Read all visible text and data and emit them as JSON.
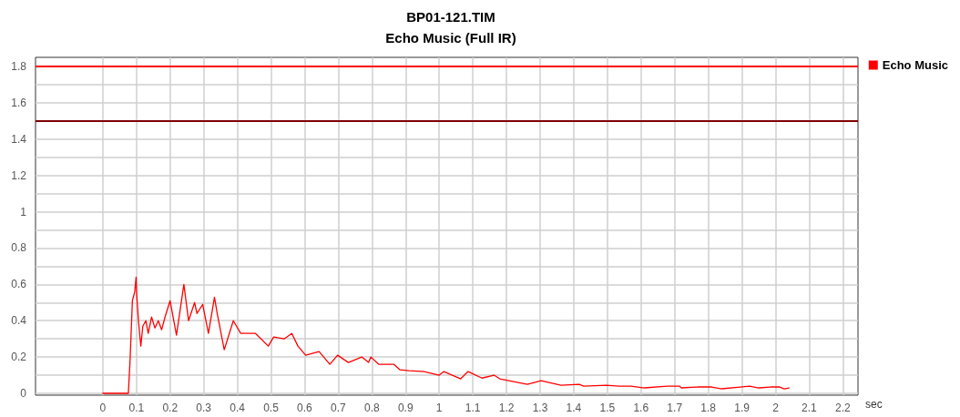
{
  "chart_data": {
    "type": "line",
    "title": "BP01-121.TIM",
    "subtitle": "Echo Music (Full IR)",
    "xlabel": "sec",
    "xlim": [
      -0.2,
      2.245
    ],
    "ylim": [
      -0.01,
      1.85
    ],
    "xticks": [
      0,
      0.1,
      0.2,
      0.3,
      0.4,
      0.5,
      0.6,
      0.7,
      0.8,
      0.9,
      1,
      1.1,
      1.2,
      1.3,
      1.4,
      1.5,
      1.6,
      1.7,
      1.8,
      1.9,
      2,
      2.1,
      2.2
    ],
    "yticks": [
      0,
      {
        "value": 0.1,
        "label": null
      },
      0.2,
      {
        "value": 0.3,
        "label": null
      },
      0.4,
      {
        "value": 0.5,
        "label": null
      },
      0.6,
      {
        "value": 0.7,
        "label": null
      },
      0.8,
      {
        "value": 0.9,
        "label": null
      },
      1,
      {
        "value": 1.1,
        "label": null
      },
      1.2,
      {
        "value": 1.3,
        "label": null
      },
      1.4,
      {
        "value": 1.5,
        "label": null
      },
      1.6,
      {
        "value": 1.7,
        "label": null
      },
      1.8
    ],
    "grid": true,
    "legend": "top right",
    "marker": "none",
    "line_style": "solid",
    "ref_lines": [
      {
        "axis": "y",
        "value": 1.8,
        "color": "#ff0000"
      },
      {
        "axis": "y",
        "value": 1.5,
        "color": "#800000"
      }
    ],
    "series": [
      {
        "name": "Echo Music",
        "color": "#ff0000",
        "x": [
          0,
          0.076,
          0.081,
          0.088,
          0.095,
          0.099,
          0.101,
          0.106,
          0.113,
          0.119,
          0.128,
          0.135,
          0.145,
          0.155,
          0.165,
          0.175,
          0.185,
          0.2,
          0.219,
          0.241,
          0.255,
          0.273,
          0.28,
          0.297,
          0.314,
          0.332,
          0.34,
          0.361,
          0.388,
          0.41,
          0.454,
          0.492,
          0.508,
          0.539,
          0.562,
          0.58,
          0.603,
          0.643,
          0.675,
          0.698,
          0.73,
          0.77,
          0.79,
          0.797,
          0.82,
          0.865,
          0.883,
          0.91,
          0.955,
          1.0,
          1.014,
          1.064,
          1.086,
          1.127,
          1.163,
          1.18,
          1.262,
          1.303,
          1.362,
          1.416,
          1.43,
          1.497,
          1.535,
          1.57,
          1.61,
          1.678,
          1.714,
          1.72,
          1.768,
          1.81,
          1.84,
          1.895,
          1.922,
          1.95,
          1.985,
          2.012,
          2.026,
          2.04
        ],
        "values": [
          0,
          0,
          0.18,
          0.51,
          0.56,
          0.64,
          0.54,
          0.4,
          0.26,
          0.37,
          0.4,
          0.33,
          0.42,
          0.36,
          0.4,
          0.35,
          0.42,
          0.51,
          0.32,
          0.6,
          0.4,
          0.5,
          0.44,
          0.49,
          0.33,
          0.53,
          0.44,
          0.24,
          0.4,
          0.33,
          0.33,
          0.26,
          0.31,
          0.3,
          0.33,
          0.26,
          0.21,
          0.23,
          0.16,
          0.21,
          0.17,
          0.2,
          0.17,
          0.2,
          0.16,
          0.16,
          0.13,
          0.125,
          0.12,
          0.1,
          0.12,
          0.08,
          0.12,
          0.084,
          0.1,
          0.08,
          0.05,
          0.07,
          0.045,
          0.05,
          0.04,
          0.045,
          0.04,
          0.04,
          0.03,
          0.04,
          0.04,
          0.03,
          0.035,
          0.035,
          0.025,
          0.035,
          0.04,
          0.03,
          0.035,
          0.035,
          0.025,
          0.03
        ]
      }
    ]
  }
}
